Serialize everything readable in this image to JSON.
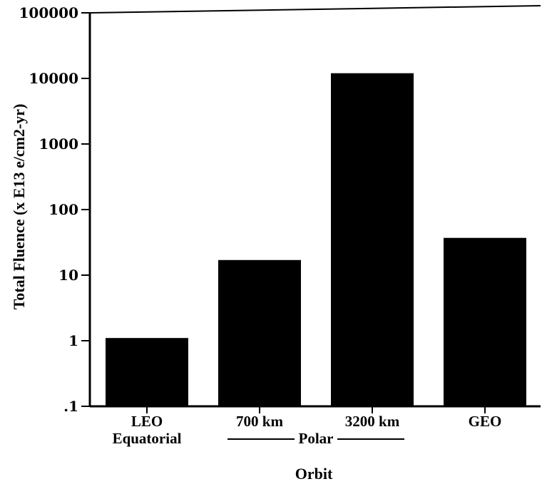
{
  "chart_data": {
    "type": "bar",
    "categories": [
      "LEO",
      "700 km",
      "3200 km",
      "GEO"
    ],
    "category_sublabels": [
      "Equatorial",
      "",
      "",
      ""
    ],
    "group_label": "Polar",
    "values": [
      1.1,
      17,
      12000,
      37
    ],
    "xlabel": "Orbit",
    "ylabel": "Total Fluence (x E13 e/cm2-yr)",
    "yscale": "log",
    "ylim": [
      0.1,
      100000
    ],
    "yticks": [
      0.1,
      1,
      10,
      100,
      1000,
      10000,
      100000
    ],
    "ytick_labels": [
      ".1",
      "1",
      "10",
      "100",
      "1000",
      "10000",
      "100000"
    ],
    "bar_color": "#000000",
    "grid": false,
    "legend": "none"
  }
}
